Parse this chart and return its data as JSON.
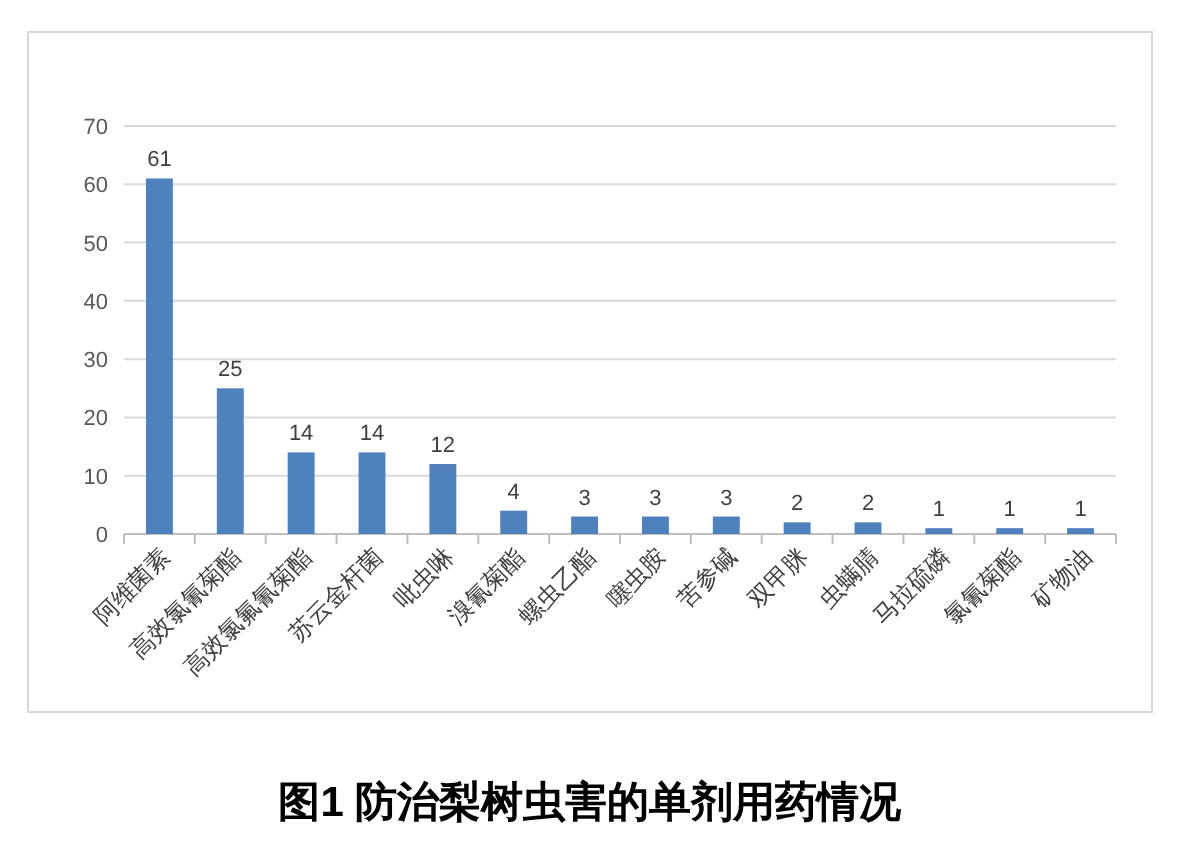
{
  "chart_data": {
    "type": "bar",
    "title": "图1 防治梨树虫害的单剂用药情况",
    "categories": [
      "阿维菌素",
      "高效氯氰菊酯",
      "高效氯氟氰菊酯",
      "苏云金杆菌",
      "吡虫啉",
      "溴氰菊酯",
      "螺虫乙酯",
      "噻虫胺",
      "苦参碱",
      "双甲脒",
      "虫螨腈",
      "马拉硫磷",
      "氯氰菊酯",
      "矿物油"
    ],
    "values": [
      61,
      25,
      14,
      14,
      12,
      4,
      3,
      3,
      3,
      2,
      2,
      1,
      1,
      1
    ],
    "color": "#4f81bd",
    "ylim": [
      0,
      70
    ],
    "yticks": [
      0,
      10,
      20,
      30,
      40,
      50,
      60,
      70
    ],
    "grid": "y",
    "data_labels": true
  }
}
